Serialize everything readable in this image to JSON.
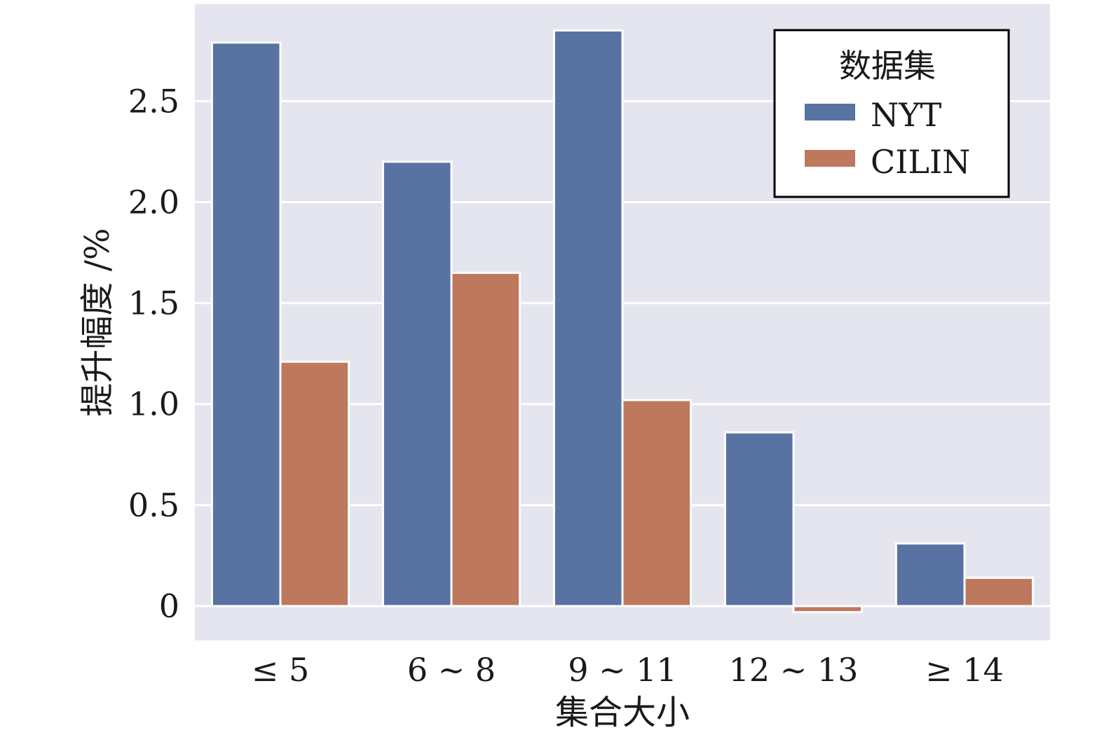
{
  "chart_data": {
    "type": "bar",
    "categories": [
      "≤ 5",
      "6 ~ 8",
      "9 ~ 11",
      "12 ~ 13",
      "≥ 14"
    ],
    "series": [
      {
        "name": "NYT",
        "color": "#5872a2",
        "values": [
          2.79,
          2.2,
          2.85,
          0.86,
          0.31
        ]
      },
      {
        "name": "CILIN",
        "color": "#bd785e",
        "values": [
          1.21,
          1.65,
          1.02,
          -0.03,
          0.14
        ]
      }
    ],
    "xlabel": "集合大小",
    "ylabel": "提升幅度 /%",
    "ylim": [
      -0.17,
      2.98
    ],
    "yticks": [
      0,
      0.5,
      1.0,
      1.5,
      2.0,
      2.5
    ],
    "ytick_labels": [
      "0",
      "0.5",
      "1.0",
      "1.5",
      "2.0",
      "2.5"
    ],
    "legend": {
      "title": "数据集",
      "position": "top-right"
    },
    "grid": true,
    "background_color": "#e5e5ef"
  }
}
